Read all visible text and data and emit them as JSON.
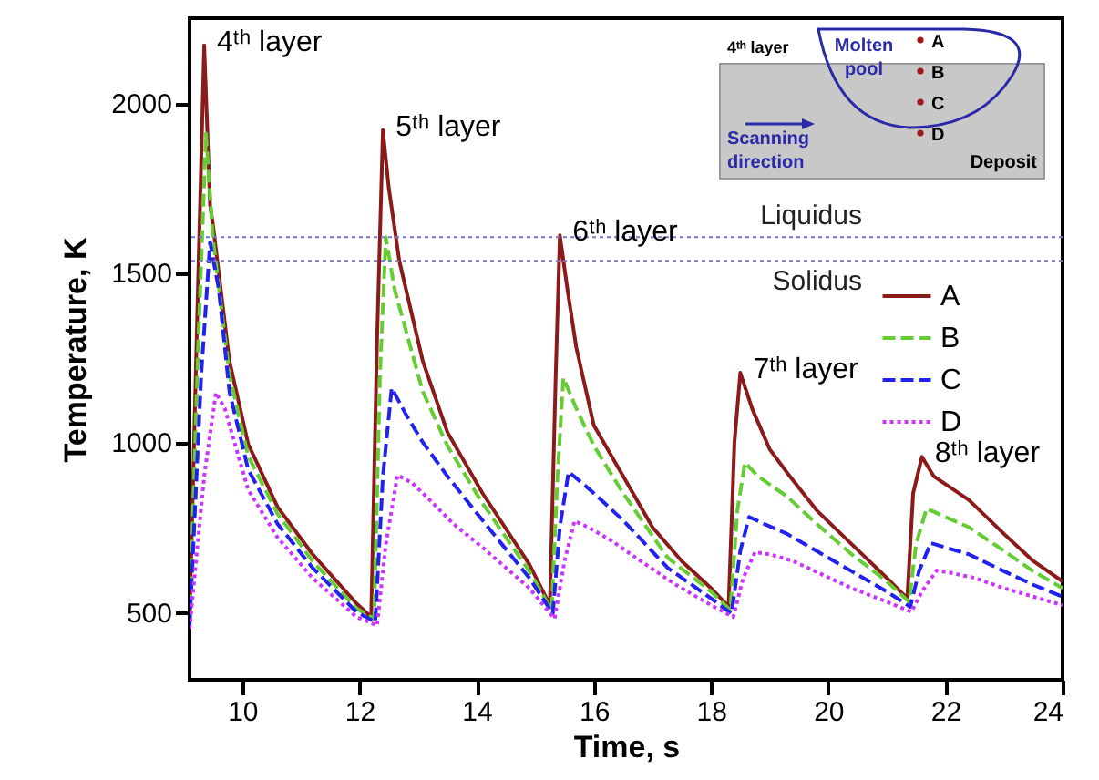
{
  "chart_data": {
    "type": "line",
    "xlabel": "Time, s",
    "ylabel": "Temperature, K",
    "xlim": [
      9.1,
      24
    ],
    "ylim": [
      300,
      2250
    ],
    "xticks": [
      10,
      12,
      14,
      16,
      18,
      20,
      22,
      24
    ],
    "yticks": [
      500,
      1000,
      1500,
      2000
    ],
    "grid": false,
    "legend": "right",
    "marker": "none",
    "series": [
      {
        "name": "A",
        "color": "#8b1a1a",
        "line_style": "solid",
        "x": [
          9.1,
          9.25,
          9.35,
          9.45,
          9.5,
          9.78,
          10.1,
          10.6,
          11.2,
          11.95,
          12.2,
          12.3,
          12.4,
          12.5,
          12.68,
          13.08,
          13.5,
          14.1,
          14.9,
          15.25,
          15.35,
          15.42,
          15.55,
          15.7,
          16,
          16.5,
          17,
          17.5,
          18,
          18.3,
          18.4,
          18.5,
          18.7,
          19,
          19.3,
          19.8,
          20.4,
          21,
          21.35,
          21.45,
          21.6,
          21.8,
          22.4,
          23,
          23.5,
          24
        ],
        "values": [
          470,
          1500,
          2170,
          1700,
          1640,
          1240,
          995,
          810,
          670,
          525,
          485,
          1300,
          1920,
          1750,
          1535,
          1240,
          1030,
          850,
          640,
          520,
          1200,
          1610,
          1450,
          1280,
          1050,
          900,
          750,
          650,
          570,
          515,
          1000,
          1205,
          1100,
          980,
          910,
          800,
          700,
          600,
          540,
          850,
          957,
          900,
          830,
          730,
          650,
          590
        ]
      },
      {
        "name": "B",
        "color": "#66cc33",
        "line_style": "dashed",
        "x": [
          9.1,
          9.25,
          9.38,
          9.5,
          9.78,
          10.1,
          10.6,
          11.2,
          11.95,
          12.25,
          12.35,
          12.45,
          12.6,
          13.08,
          13.5,
          14.1,
          14.9,
          15.28,
          15.38,
          15.48,
          15.7,
          16,
          16.5,
          17.26,
          18,
          18.33,
          18.45,
          18.58,
          18.8,
          19.3,
          19.8,
          20.4,
          21,
          21.38,
          21.5,
          21.68,
          22,
          22.4,
          23,
          23.5,
          24
        ],
        "values": [
          460,
          1300,
          1910,
          1600,
          1200,
          960,
          790,
          650,
          510,
          480,
          1200,
          1605,
          1450,
          1150,
          990,
          820,
          620,
          505,
          900,
          1190,
          1100,
          990,
          850,
          660,
          560,
          505,
          800,
          940,
          900,
          840,
          760,
          670,
          590,
          530,
          700,
          805,
          780,
          750,
          680,
          620,
          570
        ]
      },
      {
        "name": "C",
        "color": "#2222ee",
        "line_style": "dashed",
        "x": [
          9.1,
          9.3,
          9.45,
          9.6,
          9.78,
          10.1,
          10.6,
          11.2,
          11.95,
          12.27,
          12.4,
          12.55,
          12.8,
          13.08,
          13.5,
          14.1,
          14.9,
          15.3,
          15.42,
          15.57,
          15.8,
          16,
          16.5,
          17.26,
          18,
          18.35,
          18.5,
          18.65,
          18.9,
          19.3,
          19.8,
          20.4,
          21,
          21.4,
          21.55,
          21.75,
          22,
          22.4,
          23,
          23.5,
          24
        ],
        "values": [
          455,
          1200,
          1590,
          1450,
          1150,
          920,
          760,
          630,
          500,
          470,
          900,
          1160,
          1080,
          1000,
          900,
          770,
          600,
          495,
          750,
          913,
          880,
          850,
          770,
          630,
          540,
          495,
          680,
          780,
          760,
          730,
          680,
          620,
          560,
          515,
          620,
          703,
          690,
          670,
          620,
          580,
          545
        ]
      },
      {
        "name": "D",
        "color": "#cc33ff",
        "line_style": "dotted",
        "x": [
          9.1,
          9.35,
          9.55,
          9.7,
          9.9,
          10.1,
          10.6,
          11.2,
          11.95,
          12.3,
          12.45,
          12.65,
          12.9,
          13.2,
          13.6,
          14.1,
          14.9,
          15.33,
          15.5,
          15.67,
          15.9,
          16.3,
          16.8,
          17.4,
          18,
          18.38,
          18.55,
          18.75,
          19,
          19.4,
          19.9,
          20.4,
          21,
          21.42,
          21.6,
          21.85,
          22.1,
          22.5,
          23,
          23.5,
          24
        ],
        "values": [
          450,
          900,
          1146,
          1100,
          980,
          860,
          720,
          600,
          485,
          460,
          700,
          903,
          880,
          830,
          760,
          690,
          570,
          480,
          650,
          768,
          750,
          710,
          650,
          580,
          520,
          485,
          600,
          676,
          670,
          650,
          610,
          570,
          530,
          500,
          560,
          622,
          615,
          600,
          570,
          545,
          520
        ]
      }
    ],
    "ref_lines": [
      {
        "axis": "y",
        "value": 1605,
        "label": "Liquidus",
        "color": "#7777cc",
        "line_style": "dotted"
      },
      {
        "axis": "y",
        "value": 1535,
        "label": "Solidus",
        "color": "#7777cc",
        "line_style": "dotted"
      }
    ],
    "annotations": [
      {
        "text": "4ᵗʰ layer",
        "x": 9.35,
        "y": 2170
      },
      {
        "text": "5ᵗʰ layer",
        "x": 12.4,
        "y": 1920
      },
      {
        "text": "6ᵗʰ layer",
        "x": 15.42,
        "y": 1610
      },
      {
        "text": "7ᵗʰ layer",
        "x": 18.5,
        "y": 1205
      },
      {
        "text": "8ᵗʰ layer",
        "x": 21.6,
        "y": 957
      },
      "4ᵗʰ layer",
      "Molten pool",
      "A",
      "B",
      "C",
      "D",
      "Scanning direction",
      "Deposit"
    ]
  }
}
